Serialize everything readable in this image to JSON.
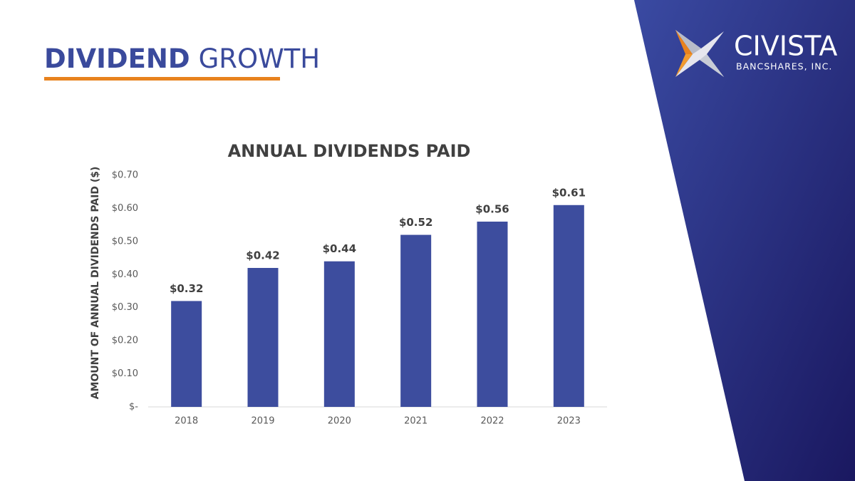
{
  "header": {
    "title_bold": "DIVIDEND",
    "title_rest": "GROWTH"
  },
  "logo": {
    "name": "CIVISTA",
    "subtitle": "BANCSHARES, INC."
  },
  "chart_data": {
    "type": "bar",
    "title": "ANNUAL DIVIDENDS PAID",
    "y_label": "AMOUNT OF ANNUAL DIVIDENDS PAID ($)",
    "categories": [
      "2018",
      "2019",
      "2020",
      "2021",
      "2022",
      "2023"
    ],
    "values": [
      0.32,
      0.42,
      0.44,
      0.52,
      0.56,
      0.61
    ],
    "value_labels": [
      "$0.32",
      "$0.42",
      "$0.44",
      "$0.52",
      "$0.56",
      "$0.61"
    ],
    "color": "#3d4d9e",
    "ylim": [
      0,
      0.7
    ],
    "yticks": [
      {
        "value": 0,
        "label": "$-"
      },
      {
        "value": 0.1,
        "label": "$0.10"
      },
      {
        "value": 0.2,
        "label": "$0.20"
      },
      {
        "value": 0.3,
        "label": "$0.30"
      },
      {
        "value": 0.4,
        "label": "$0.40"
      },
      {
        "value": 0.5,
        "label": "$0.50"
      },
      {
        "value": 0.6,
        "label": "$0.60"
      },
      {
        "value": 0.7,
        "label": "$0.70"
      }
    ],
    "grid": false
  }
}
